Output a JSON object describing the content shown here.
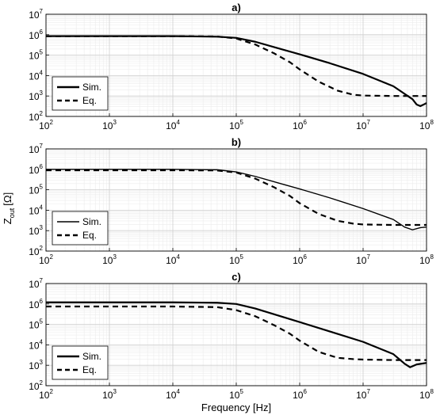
{
  "figure": {
    "xlabel": "Frequency [Hz]",
    "ylabel": "Z",
    "ylabel_sub": "out",
    "ylabel_unit": "[Ω]"
  },
  "chart_data": [
    {
      "type": "line",
      "title": "a)",
      "xscale": "log",
      "yscale": "log",
      "xlim": [
        100,
        100000000
      ],
      "ylim": [
        100,
        10000000
      ],
      "grid": true,
      "legend": "bottom-left",
      "series": [
        {
          "name": "Sim.",
          "style": "solid",
          "width": "thick",
          "x": [
            100,
            10000,
            50000,
            100000,
            200000,
            500000,
            1000000,
            3000000,
            10000000,
            30000000,
            60000000,
            70000000,
            80000000,
            90000000,
            100000000
          ],
          "y": [
            850000,
            850000,
            800000,
            700000,
            450000,
            200000,
            110000,
            40000,
            12000,
            3000,
            700,
            380,
            320,
            380,
            450
          ]
        },
        {
          "name": "Eq.",
          "style": "dashed",
          "width": "thick",
          "x": [
            100,
            10000,
            50000,
            100000,
            200000,
            400000,
            700000,
            1000000,
            2000000,
            4000000,
            7000000,
            10000000,
            30000000,
            100000000
          ],
          "y": [
            850000,
            850000,
            820000,
            650000,
            330000,
            120000,
            45000,
            20000,
            5000,
            1800,
            1150,
            1050,
            1000,
            1000
          ]
        }
      ]
    },
    {
      "type": "line",
      "title": "b)",
      "xscale": "log",
      "yscale": "log",
      "xlim": [
        100,
        100000000
      ],
      "ylim": [
        100,
        10000000
      ],
      "grid": true,
      "legend": "bottom-left",
      "series": [
        {
          "name": "Sim.",
          "style": "solid",
          "width": "thin",
          "x": [
            100,
            10000,
            50000,
            100000,
            200000,
            500000,
            1000000,
            3000000,
            10000000,
            30000000,
            45000000,
            60000000,
            80000000,
            100000000
          ],
          "y": [
            1000000,
            1000000,
            950000,
            750000,
            450000,
            200000,
            110000,
            40000,
            12000,
            3500,
            1500,
            1100,
            1400,
            1500
          ]
        },
        {
          "name": "Eq.",
          "style": "dashed",
          "width": "thick",
          "x": [
            100,
            10000,
            50000,
            100000,
            200000,
            400000,
            700000,
            1000000,
            2000000,
            4000000,
            7000000,
            10000000,
            30000000,
            100000000
          ],
          "y": [
            900000,
            900000,
            880000,
            700000,
            350000,
            130000,
            50000,
            22000,
            6500,
            3000,
            2200,
            2000,
            1900,
            1900
          ]
        }
      ]
    },
    {
      "type": "line",
      "title": "c)",
      "xscale": "log",
      "yscale": "log",
      "xlim": [
        100,
        100000000
      ],
      "ylim": [
        100,
        10000000
      ],
      "grid": true,
      "legend": "bottom-left",
      "series": [
        {
          "name": "Sim.",
          "style": "solid",
          "width": "thick",
          "x": [
            100,
            10000,
            50000,
            100000,
            200000,
            500000,
            1000000,
            3000000,
            10000000,
            30000000,
            45000000,
            55000000,
            70000000,
            100000000
          ],
          "y": [
            1200000,
            1200000,
            1150000,
            1000000,
            600000,
            250000,
            130000,
            45000,
            14000,
            3500,
            1200,
            800,
            1100,
            1300
          ]
        },
        {
          "name": "Eq.",
          "style": "dashed",
          "width": "thick",
          "x": [
            100,
            10000,
            50000,
            100000,
            200000,
            400000,
            700000,
            1000000,
            2000000,
            4000000,
            7000000,
            10000000,
            30000000,
            100000000
          ],
          "y": [
            750000,
            750000,
            700000,
            500000,
            250000,
            90000,
            35000,
            16000,
            4500,
            2300,
            2000,
            1900,
            1800,
            1800
          ]
        }
      ]
    }
  ]
}
